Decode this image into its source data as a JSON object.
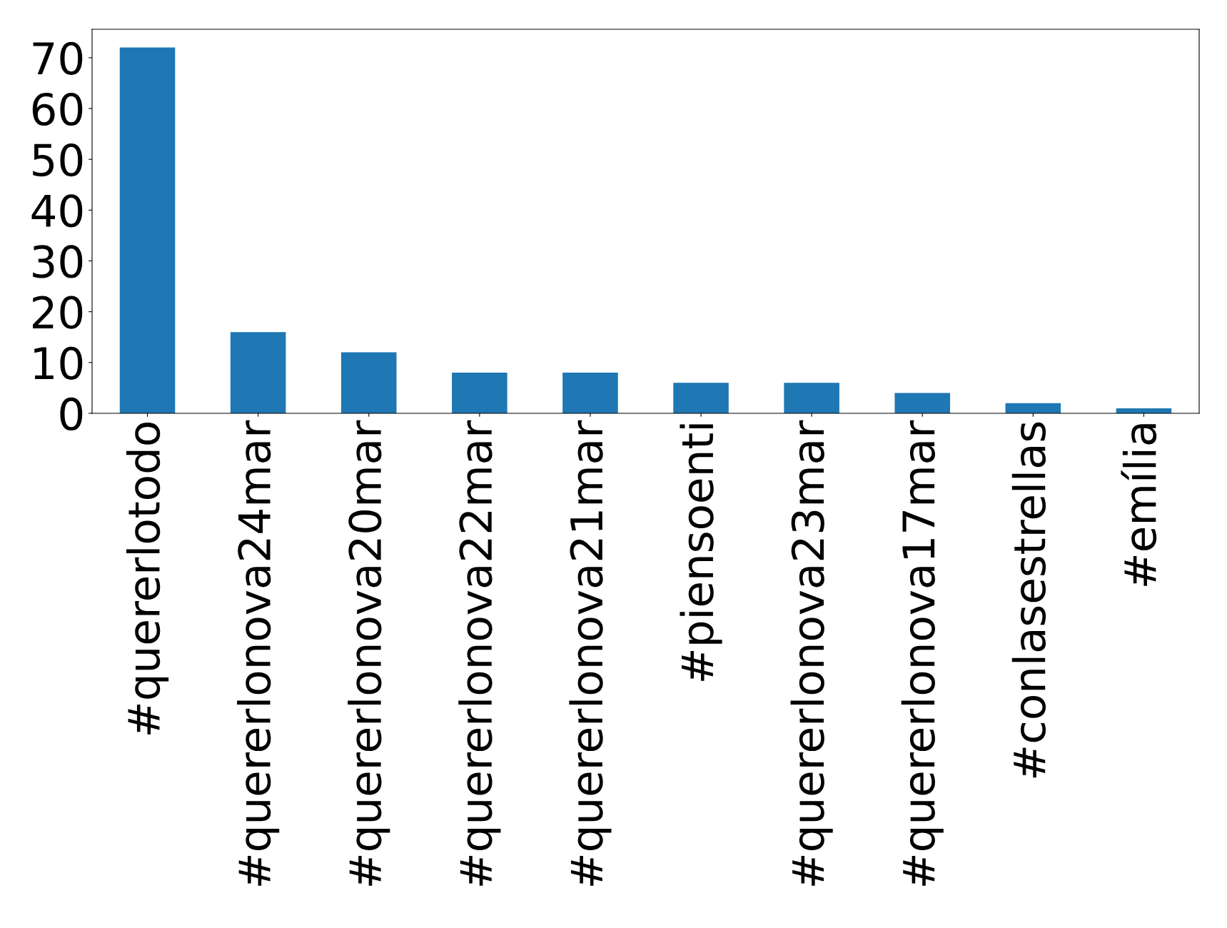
{
  "chart_data": {
    "type": "bar",
    "categories": [
      "#quererlotodo",
      "#quererlonova24mar",
      "#quererlonova20mar",
      "#quererlonova22mar",
      "#quererlonova21mar",
      "#piensoenti",
      "#quererlonova23mar",
      "#quererlonova17mar",
      "#conlasestrellas",
      "#emília"
    ],
    "values": [
      72,
      16,
      12,
      8,
      8,
      6,
      6,
      4,
      2,
      1
    ],
    "color": "#1f77b4",
    "ylim": [
      0,
      75.6
    ],
    "yticks": [
      0,
      10,
      20,
      30,
      40,
      50,
      60,
      70
    ],
    "grid": false,
    "legend": false
  }
}
